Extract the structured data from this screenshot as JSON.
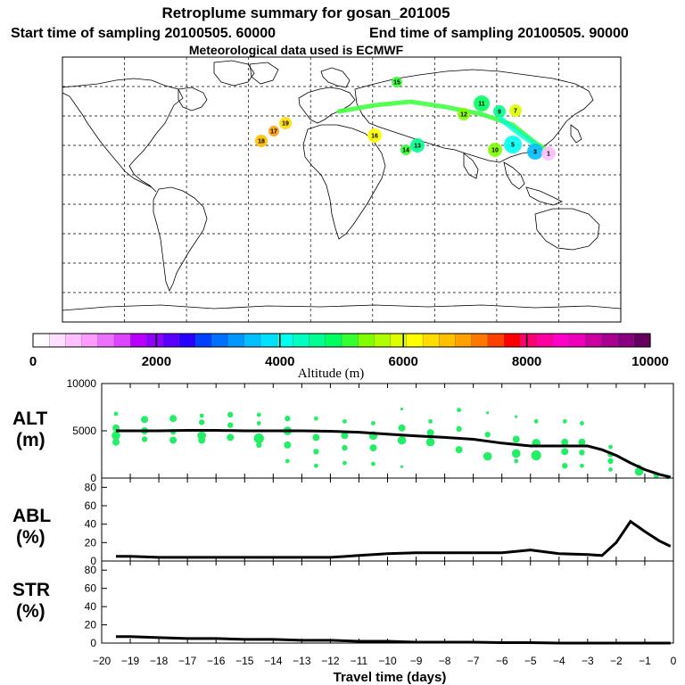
{
  "header": {
    "title": "Retroplume summary for gosan_201005",
    "start_label": "Start time of sampling 20100505. 60000",
    "end_label": "End time of sampling 20100505. 90000",
    "met_label": "Meteorological data used is ECMWF"
  },
  "colorbar": {
    "label": "Altitude (m)",
    "ticks": [
      "0",
      "2000",
      "4000",
      "6000",
      "8000",
      "10000"
    ],
    "min": 0,
    "max": 10000,
    "colors": [
      "#ffffff",
      "#ffe0ff",
      "#ffc0ff",
      "#ff9aff",
      "#ee70ff",
      "#dd44ff",
      "#b800ff",
      "#9000ff",
      "#5a00ff",
      "#2800ff",
      "#0040ff",
      "#0070ff",
      "#0098ff",
      "#00c0ff",
      "#00e0ff",
      "#00ffee",
      "#00ffc0",
      "#00ff90",
      "#00ff60",
      "#33ff33",
      "#80ff00",
      "#b0ff00",
      "#ddff00",
      "#ffff00",
      "#ffdd00",
      "#ffc000",
      "#ffa000",
      "#ff7800",
      "#ff4000",
      "#ff0000",
      "#ff0070",
      "#ff00a0",
      "#ff00c8",
      "#ee00bb",
      "#cc00a0",
      "#aa0090",
      "#880080",
      "#660060"
    ]
  },
  "map_markers": [
    {
      "label": "15",
      "alt": 5000
    },
    {
      "label": "11",
      "alt": 4800
    },
    {
      "label": "13",
      "alt": 4600
    },
    {
      "label": "19",
      "alt": 6500
    },
    {
      "label": "17",
      "alt": 7000
    },
    {
      "label": "18",
      "alt": 6800
    },
    {
      "label": "16",
      "alt": 6200
    },
    {
      "label": "14",
      "alt": 5200
    },
    {
      "label": "12",
      "alt": 5400
    },
    {
      "label": "10",
      "alt": 5300
    },
    {
      "label": "9",
      "alt": 4600
    },
    {
      "label": "7",
      "alt": 5800
    },
    {
      "label": "5",
      "alt": 4000
    },
    {
      "label": "3",
      "alt": 3600
    },
    {
      "label": "1",
      "alt": 600
    }
  ],
  "chart_data": [
    {
      "type": "line",
      "panel": "ALT",
      "ylabel": "ALT (m)",
      "ylim": [
        0,
        10000
      ],
      "yticks": [
        "0",
        "5000",
        "10000"
      ],
      "x": [
        -19.5,
        -19,
        -18,
        -17,
        -16,
        -15,
        -14,
        -13,
        -12,
        -11,
        -10,
        -9,
        -8,
        -7,
        -6,
        -5,
        -4,
        -3,
        -2.5,
        -2,
        -1.5,
        -1,
        -0.5,
        -0.1
      ],
      "series": [
        {
          "name": "mean altitude",
          "values": [
            5000,
            5000,
            5000,
            5050,
            5050,
            5000,
            5000,
            5000,
            4950,
            4850,
            4650,
            4450,
            4300,
            4100,
            3700,
            3400,
            3400,
            3400,
            3000,
            2400,
            1600,
            900,
            400,
            100
          ]
        }
      ],
      "scatter_points": [
        {
          "x": -19.5,
          "y": 6800,
          "s": 3
        },
        {
          "x": -19.5,
          "y": 5300,
          "s": 5
        },
        {
          "x": -19.5,
          "y": 4500,
          "s": 6
        },
        {
          "x": -19.5,
          "y": 3800,
          "s": 5
        },
        {
          "x": -18.5,
          "y": 6200,
          "s": 5
        },
        {
          "x": -18.5,
          "y": 5000,
          "s": 5
        },
        {
          "x": -18.5,
          "y": 4100,
          "s": 4
        },
        {
          "x": -17.5,
          "y": 6300,
          "s": 5
        },
        {
          "x": -17.5,
          "y": 4900,
          "s": 4
        },
        {
          "x": -17.5,
          "y": 4000,
          "s": 5
        },
        {
          "x": -16.5,
          "y": 6600,
          "s": 3
        },
        {
          "x": -16.5,
          "y": 5900,
          "s": 4
        },
        {
          "x": -16.5,
          "y": 4500,
          "s": 6
        },
        {
          "x": -16.5,
          "y": 4000,
          "s": 5
        },
        {
          "x": -15.5,
          "y": 6700,
          "s": 4
        },
        {
          "x": -15.5,
          "y": 5600,
          "s": 4
        },
        {
          "x": -15.5,
          "y": 4300,
          "s": 5
        },
        {
          "x": -14.5,
          "y": 6700,
          "s": 3
        },
        {
          "x": -14.5,
          "y": 5800,
          "s": 3
        },
        {
          "x": -14.5,
          "y": 4200,
          "s": 7
        },
        {
          "x": -14.5,
          "y": 3500,
          "s": 4
        },
        {
          "x": -13.5,
          "y": 6300,
          "s": 4
        },
        {
          "x": -13.5,
          "y": 5000,
          "s": 6
        },
        {
          "x": -13.5,
          "y": 3500,
          "s": 5
        },
        {
          "x": -13.5,
          "y": 1800,
          "s": 3
        },
        {
          "x": -12.5,
          "y": 6300,
          "s": 3
        },
        {
          "x": -12.5,
          "y": 4300,
          "s": 5
        },
        {
          "x": -12.5,
          "y": 2800,
          "s": 4
        },
        {
          "x": -12.5,
          "y": 1300,
          "s": 3
        },
        {
          "x": -11.5,
          "y": 6000,
          "s": 3
        },
        {
          "x": -11.5,
          "y": 4500,
          "s": 5
        },
        {
          "x": -11.5,
          "y": 3200,
          "s": 4
        },
        {
          "x": -11.5,
          "y": 1600,
          "s": 3
        },
        {
          "x": -10.5,
          "y": 5800,
          "s": 3
        },
        {
          "x": -10.5,
          "y": 4500,
          "s": 6
        },
        {
          "x": -10.5,
          "y": 3200,
          "s": 5
        },
        {
          "x": -10.5,
          "y": 1500,
          "s": 3
        },
        {
          "x": -9.5,
          "y": 7300,
          "s": 2
        },
        {
          "x": -9.5,
          "y": 5300,
          "s": 5
        },
        {
          "x": -9.5,
          "y": 4000,
          "s": 6
        },
        {
          "x": -9.5,
          "y": 1200,
          "s": 2
        },
        {
          "x": -8.5,
          "y": 6000,
          "s": 3
        },
        {
          "x": -8.5,
          "y": 4800,
          "s": 5
        },
        {
          "x": -8.5,
          "y": 3800,
          "s": 6
        },
        {
          "x": -7.5,
          "y": 7200,
          "s": 3
        },
        {
          "x": -7.5,
          "y": 5200,
          "s": 4
        },
        {
          "x": -7.5,
          "y": 3000,
          "s": 5
        },
        {
          "x": -6.5,
          "y": 6900,
          "s": 2
        },
        {
          "x": -6.5,
          "y": 4600,
          "s": 4
        },
        {
          "x": -6.5,
          "y": 2300,
          "s": 6
        },
        {
          "x": -5.5,
          "y": 6500,
          "s": 2
        },
        {
          "x": -5.5,
          "y": 4100,
          "s": 5
        },
        {
          "x": -5.5,
          "y": 2600,
          "s": 6
        },
        {
          "x": -5.5,
          "y": 1800,
          "s": 3
        },
        {
          "x": -4.8,
          "y": 6000,
          "s": 3
        },
        {
          "x": -4.8,
          "y": 3700,
          "s": 6
        },
        {
          "x": -4.8,
          "y": 2400,
          "s": 7
        },
        {
          "x": -3.8,
          "y": 6000,
          "s": 3
        },
        {
          "x": -3.8,
          "y": 3800,
          "s": 5
        },
        {
          "x": -3.8,
          "y": 2800,
          "s": 5
        },
        {
          "x": -3.8,
          "y": 1300,
          "s": 4
        },
        {
          "x": -3.2,
          "y": 5800,
          "s": 3
        },
        {
          "x": -3.2,
          "y": 3800,
          "s": 5
        },
        {
          "x": -3.2,
          "y": 2700,
          "s": 4
        },
        {
          "x": -3.2,
          "y": 1300,
          "s": 3
        },
        {
          "x": -2.2,
          "y": 3300,
          "s": 3
        },
        {
          "x": -2.2,
          "y": 2500,
          "s": 4
        },
        {
          "x": -2.2,
          "y": 1800,
          "s": 4
        },
        {
          "x": -2.2,
          "y": 900,
          "s": 3
        },
        {
          "x": -1.2,
          "y": 1200,
          "s": 3
        },
        {
          "x": -1.2,
          "y": 700,
          "s": 6
        },
        {
          "x": -0.6,
          "y": 300,
          "s": 4
        },
        {
          "x": -0.2,
          "y": 100,
          "s": 3
        }
      ]
    },
    {
      "type": "line",
      "panel": "ABL",
      "ylabel": "ABL (%)",
      "ylim": [
        0,
        90
      ],
      "yticks": [
        "0",
        "20",
        "40",
        "60",
        "80"
      ],
      "x": [
        -19.5,
        -19,
        -18,
        -17,
        -16,
        -15,
        -14,
        -13,
        -12,
        -11,
        -10,
        -9,
        -8,
        -7,
        -6,
        -5,
        -4,
        -3,
        -2.5,
        -2,
        -1.5,
        -1,
        -0.5,
        -0.1
      ],
      "series": [
        {
          "name": "ABL fraction",
          "values": [
            5,
            5,
            4,
            4,
            4,
            4,
            4,
            4,
            4,
            6,
            8,
            9,
            9,
            9,
            9,
            12,
            8,
            7,
            6,
            20,
            43,
            32,
            22,
            16
          ]
        }
      ]
    },
    {
      "type": "line",
      "panel": "STR",
      "ylabel": "STR (%)",
      "ylim": [
        0,
        90
      ],
      "yticks": [
        "0",
        "20",
        "40",
        "60",
        "80"
      ],
      "x": [
        -19.5,
        -19,
        -18,
        -17,
        -16,
        -15,
        -14,
        -13,
        -12,
        -11,
        -10,
        -9,
        -8,
        -7,
        -6,
        -5,
        -4,
        -3,
        -2.5,
        -2,
        -1.5,
        -1,
        -0.5,
        -0.1
      ],
      "series": [
        {
          "name": "STR fraction",
          "values": [
            7,
            7,
            6,
            5,
            5,
            4,
            4,
            3,
            3,
            2,
            2,
            1,
            1,
            1,
            0.5,
            0.5,
            0,
            0,
            0,
            0,
            0,
            0,
            0,
            0
          ]
        }
      ]
    }
  ],
  "panels": {
    "alt_label_1": "ALT",
    "alt_label_2": "(m)",
    "abl_label_1": "ABL",
    "abl_label_2": "(%)",
    "str_label_1": "STR",
    "str_label_2": "(%)"
  },
  "xaxis": {
    "ticks": [
      "−20",
      "−19",
      "−18",
      "−17",
      "−16",
      "−15",
      "−14",
      "−13",
      "−12",
      "−11",
      "−10",
      "−9",
      "−8",
      "−7",
      "−6",
      "−5",
      "−4",
      "−3",
      "−2",
      "−1",
      "0"
    ],
    "label": "Travel time (days)"
  }
}
